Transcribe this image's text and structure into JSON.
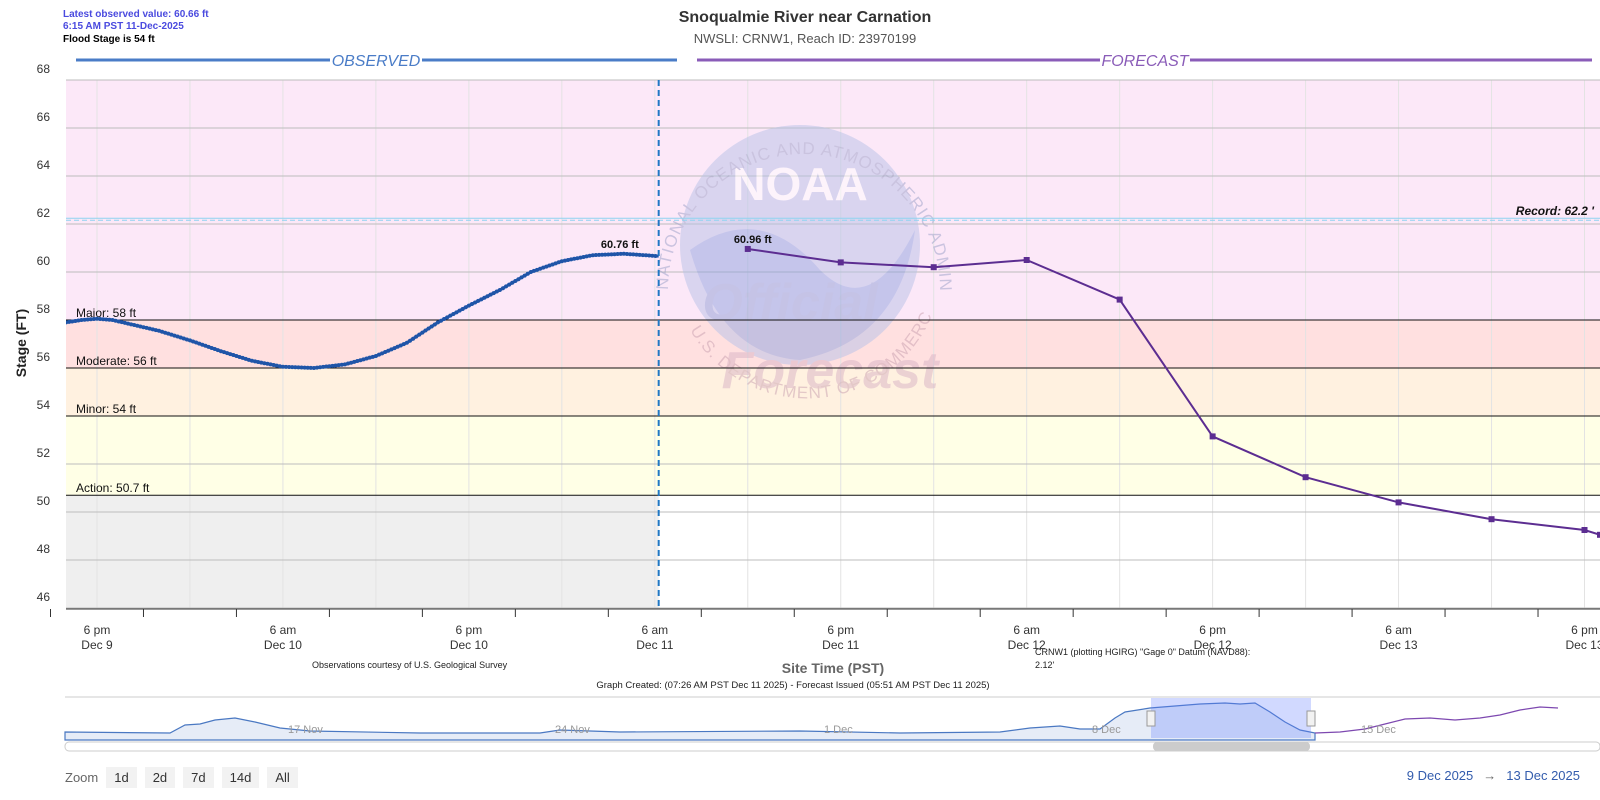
{
  "header": {
    "title": "Snoqualmie River near Carnation",
    "subtitle": "NWSLI: CRNW1, Reach ID: 23970199",
    "latest_observed": "Latest observed value: 60.66 ft",
    "latest_time": "6:15 AM PST 11-Dec-2025",
    "flood_stage": "Flood Stage is 54 ft"
  },
  "section_labels": {
    "observed": "OBSERVED",
    "forecast": "FORECAST"
  },
  "colors": {
    "observed": "#1f55a8",
    "forecast": "#5c2d91",
    "major_band": "#fce8f8",
    "moderate_band": "#ffe0e0",
    "minor_band": "#fff1e0",
    "action_band": "#ffffe6",
    "observed_background": "#efefef",
    "record_line": "#8fd3f0",
    "divider": "#1f77c4"
  },
  "chart_data": {
    "type": "line",
    "title": "Snoqualmie River near Carnation",
    "xlabel": "Site Time (PST)",
    "ylabel": "Stage (FT)",
    "ylim": [
      46,
      68
    ],
    "yticks": [
      46,
      48,
      50,
      52,
      54,
      56,
      58,
      60,
      62,
      64,
      66,
      68
    ],
    "xlim": [
      "2025-12-09T16:00",
      "2025-12-13T19:00"
    ],
    "xticks": [
      {
        "x": "2025-12-09T18:00",
        "label1": "6 pm",
        "label2": "Dec 9"
      },
      {
        "x": "2025-12-10T06:00",
        "label1": "6 am",
        "label2": "Dec 10"
      },
      {
        "x": "2025-12-10T18:00",
        "label1": "6 pm",
        "label2": "Dec 10"
      },
      {
        "x": "2025-12-11T06:00",
        "label1": "6 am",
        "label2": "Dec 11"
      },
      {
        "x": "2025-12-11T18:00",
        "label1": "6 pm",
        "label2": "Dec 11"
      },
      {
        "x": "2025-12-12T06:00",
        "label1": "6 am",
        "label2": "Dec 12"
      },
      {
        "x": "2025-12-12T18:00",
        "label1": "6 pm",
        "label2": "Dec 12"
      },
      {
        "x": "2025-12-13T06:00",
        "label1": "6 am",
        "label2": "Dec 13"
      },
      {
        "x": "2025-12-13T18:00",
        "label1": "6 pm",
        "label2": "Dec 13"
      }
    ],
    "thresholds": [
      {
        "name": "Major",
        "label": "Major: 58 ft",
        "value": 58
      },
      {
        "name": "Moderate",
        "label": "Moderate: 56 ft",
        "value": 56
      },
      {
        "name": "Minor",
        "label": "Minor: 54 ft",
        "value": 54
      },
      {
        "name": "Action",
        "label": "Action: 50.7 ft",
        "value": 50.7
      }
    ],
    "record": {
      "label": "Record: 62.2 '",
      "value": 62.2
    },
    "forecast_start": "2025-12-11T06:15",
    "series": [
      {
        "name": "Observed",
        "points": [
          {
            "x": "2025-12-09T16:00",
            "y": 57.9
          },
          {
            "x": "2025-12-09T17:00",
            "y": 58.0
          },
          {
            "x": "2025-12-09T18:00",
            "y": 58.05
          },
          {
            "x": "2025-12-09T19:00",
            "y": 58.0
          },
          {
            "x": "2025-12-09T20:00",
            "y": 57.85
          },
          {
            "x": "2025-12-09T22:00",
            "y": 57.55
          },
          {
            "x": "2025-12-10T00:00",
            "y": 57.15
          },
          {
            "x": "2025-12-10T02:00",
            "y": 56.7
          },
          {
            "x": "2025-12-10T04:00",
            "y": 56.3
          },
          {
            "x": "2025-12-10T06:00",
            "y": 56.05
          },
          {
            "x": "2025-12-10T08:00",
            "y": 56.0
          },
          {
            "x": "2025-12-10T10:00",
            "y": 56.15
          },
          {
            "x": "2025-12-10T12:00",
            "y": 56.5
          },
          {
            "x": "2025-12-10T14:00",
            "y": 57.05
          },
          {
            "x": "2025-12-10T16:00",
            "y": 57.9
          },
          {
            "x": "2025-12-10T18:00",
            "y": 58.6
          },
          {
            "x": "2025-12-10T20:00",
            "y": 59.25
          },
          {
            "x": "2025-12-10T22:00",
            "y": 60.0
          },
          {
            "x": "2025-12-11T00:00",
            "y": 60.45
          },
          {
            "x": "2025-12-11T02:00",
            "y": 60.7
          },
          {
            "x": "2025-12-11T04:00",
            "y": 60.76
          },
          {
            "x": "2025-12-11T06:15",
            "y": 60.66
          }
        ]
      },
      {
        "name": "Forecast",
        "points": [
          {
            "x": "2025-12-11T12:00",
            "y": 60.96
          },
          {
            "x": "2025-12-11T18:00",
            "y": 60.4
          },
          {
            "x": "2025-12-12T00:00",
            "y": 60.2
          },
          {
            "x": "2025-12-12T06:00",
            "y": 60.5
          },
          {
            "x": "2025-12-12T12:00",
            "y": 58.85
          },
          {
            "x": "2025-12-12T18:00",
            "y": 53.15
          },
          {
            "x": "2025-12-13T00:00",
            "y": 51.45
          },
          {
            "x": "2025-12-13T06:00",
            "y": 50.4
          },
          {
            "x": "2025-12-13T12:00",
            "y": 49.7
          },
          {
            "x": "2025-12-13T18:00",
            "y": 49.25
          },
          {
            "x": "2025-12-13T19:00",
            "y": 49.05
          }
        ]
      }
    ],
    "annotations": [
      {
        "x": "2025-12-11T04:00",
        "y": 60.76,
        "label": "60.76 ft"
      },
      {
        "x": "2025-12-11T12:00",
        "y": 60.96,
        "label": "60.96 ft"
      }
    ]
  },
  "notes": {
    "usgs": "Observations courtesy of U.S. Geological Survey",
    "datum_line1": "CRNW1 (plotting HGIRG) \"Gage 0\" Datum (NAVD88):",
    "datum_line2": "2.12'",
    "created": "Graph Created: (07:26 AM PST Dec 11 2025) - Forecast Issued (05:51 AM PST Dec 11 2025)"
  },
  "watermark": {
    "logo_text": "NOAA",
    "official": "Official",
    "forecast_word": "Forecast",
    "ring_text": "NATIONAL OCEANIC AND ATMOSPHERIC ADMINISTRATION",
    "ring_text_bottom": "U.S. DEPARTMENT OF COMMERCE"
  },
  "navigator": {
    "labels": [
      "17 Nov",
      "24 Nov",
      "1 Dec",
      "8 Dec",
      "15 Dec"
    ]
  },
  "zoom": {
    "label": "Zoom",
    "buttons": [
      "1d",
      "2d",
      "7d",
      "14d",
      "All"
    ]
  },
  "range": {
    "from": "9 Dec 2025",
    "arrow": "→",
    "to": "13 Dec 2025"
  }
}
